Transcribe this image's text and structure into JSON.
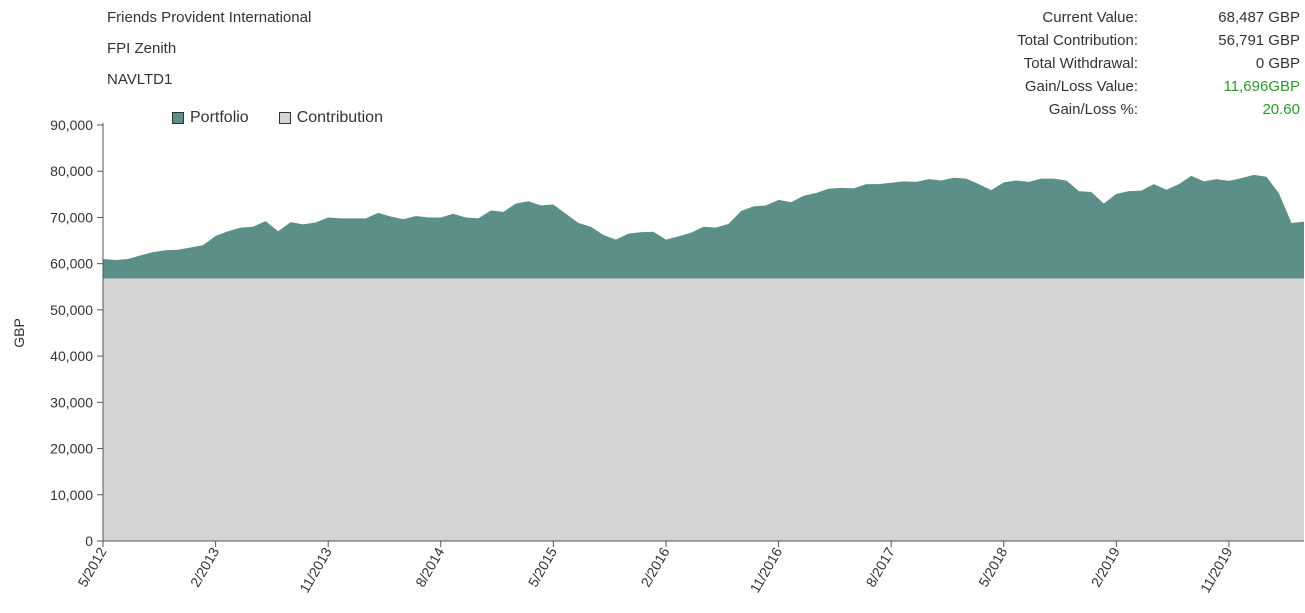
{
  "header": {
    "provider": "Friends Provident International",
    "product": "FPI Zenith",
    "code": "NAVLTD1"
  },
  "stats": [
    {
      "label": "Current Value:",
      "value": "68,487 GBP"
    },
    {
      "label": "Total Contribution:",
      "value": "56,791 GBP"
    },
    {
      "label": "Total Withdrawal:",
      "value": "0 GBP"
    },
    {
      "label": "Gain/Loss Value:",
      "value": "11,696GBP",
      "positive": true
    },
    {
      "label": "Gain/Loss %:",
      "value": "20.60",
      "positive": true
    }
  ],
  "colors": {
    "portfolio": "#5b8f88",
    "contribution": "#d4d4d4",
    "gain": "#2a9a2a"
  },
  "chart_data": {
    "type": "area",
    "ylabel": "GBP",
    "ylim": [
      0,
      90000
    ],
    "yticks": [
      "0",
      "10,000",
      "20,000",
      "30,000",
      "40,000",
      "50,000",
      "60,000",
      "70,000",
      "80,000",
      "90,000"
    ],
    "xticks": [
      "5/2012",
      "2/2013",
      "11/2013",
      "8/2014",
      "5/2015",
      "2/2016",
      "11/2016",
      "8/2017",
      "5/2018",
      "2/2019",
      "11/2019"
    ],
    "legend": "top-left",
    "grid": false,
    "series": [
      {
        "name": "Portfolio",
        "x": [
          "5/2012",
          "6/2012",
          "7/2012",
          "8/2012",
          "9/2012",
          "10/2012",
          "11/2012",
          "12/2012",
          "1/2013",
          "2/2013",
          "3/2013",
          "4/2013",
          "5/2013",
          "6/2013",
          "7/2013",
          "8/2013",
          "9/2013",
          "10/2013",
          "11/2013",
          "12/2013",
          "1/2014",
          "2/2014",
          "3/2014",
          "4/2014",
          "5/2014",
          "6/2014",
          "7/2014",
          "8/2014",
          "9/2014",
          "10/2014",
          "11/2014",
          "12/2014",
          "1/2015",
          "2/2015",
          "3/2015",
          "4/2015",
          "5/2015",
          "6/2015",
          "7/2015",
          "8/2015",
          "9/2015",
          "10/2015",
          "11/2015",
          "12/2015",
          "1/2016",
          "2/2016",
          "3/2016",
          "4/2016",
          "5/2016",
          "6/2016",
          "7/2016",
          "8/2016",
          "9/2016",
          "10/2016",
          "11/2016",
          "12/2016",
          "1/2017",
          "2/2017",
          "3/2017",
          "4/2017",
          "5/2017",
          "6/2017",
          "7/2017",
          "8/2017",
          "9/2017",
          "10/2017",
          "11/2017",
          "12/2017",
          "1/2018",
          "2/2018",
          "3/2018",
          "4/2018",
          "5/2018",
          "6/2018",
          "7/2018",
          "8/2018",
          "9/2018",
          "10/2018",
          "11/2018",
          "12/2018",
          "1/2019",
          "2/2019",
          "3/2019",
          "4/2019",
          "5/2019",
          "6/2019",
          "7/2019",
          "8/2019",
          "9/2019",
          "10/2019",
          "11/2019",
          "12/2019",
          "1/2020",
          "2/2020",
          "3/2020",
          "4/2020",
          "5/2020"
        ],
        "values": [
          61000,
          60800,
          61000,
          61800,
          62500,
          62900,
          63000,
          63500,
          64000,
          66000,
          67000,
          67800,
          68000,
          69200,
          67000,
          69000,
          68500,
          68900,
          70000,
          69800,
          69800,
          69800,
          71000,
          70200,
          69600,
          70300,
          70000,
          70000,
          70800,
          70000,
          69800,
          71500,
          71200,
          73000,
          73500,
          72600,
          72800,
          70800,
          68800,
          68000,
          66200,
          65200,
          66500,
          66800,
          66900,
          65200,
          65900,
          66700,
          68000,
          67800,
          68600,
          71400,
          72400,
          72600,
          73800,
          73300,
          74700,
          75300,
          76200,
          76400,
          76300,
          77200,
          77200,
          77500,
          77800,
          77700,
          78300,
          78000,
          78600,
          78400,
          77200,
          75900,
          77600,
          78000,
          77700,
          78400,
          78400,
          78000,
          75700,
          75500,
          73000,
          75100,
          75700,
          75800,
          77200,
          76000,
          77200,
          79000,
          77800,
          78300,
          77900,
          78500,
          79200,
          78800,
          75200,
          68800,
          69100
        ]
      },
      {
        "name": "Contribution",
        "value": 56791
      }
    ]
  }
}
